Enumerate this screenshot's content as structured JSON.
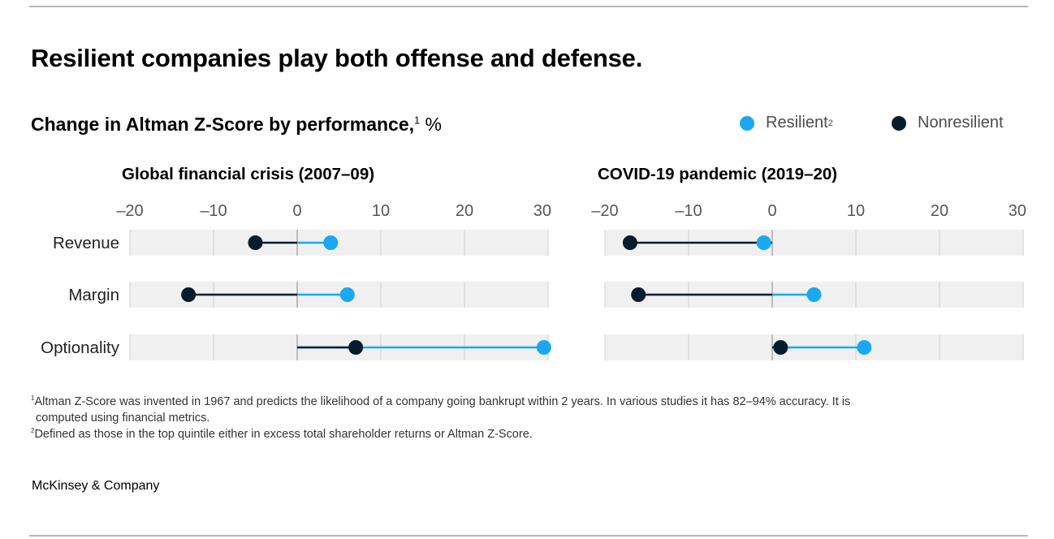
{
  "title": "Resilient companies play both offense and defense.",
  "subtitle": {
    "main": "Change in Altman Z-Score by performance,",
    "sup": "1",
    "unit": " %"
  },
  "legend": [
    {
      "label": "Resilient",
      "sup": "2",
      "color": "#1aa8f0"
    },
    {
      "label": "Nonresilient",
      "sup": "",
      "color": "#051c2c"
    }
  ],
  "colors": {
    "resilient": "#1aa8f0",
    "nonresilient": "#051c2c",
    "band": "#f0f0f0",
    "grid": "#cfcfcf",
    "zero": "#999999"
  },
  "chart_data": [
    {
      "type": "dumbbell",
      "title": "Global financial crisis (2007–09)",
      "categories": [
        "Revenue",
        "Margin",
        "Optionality"
      ],
      "xlim": [
        -20,
        30
      ],
      "ticks": [
        -20,
        -10,
        0,
        10,
        20,
        30
      ],
      "tick_labels": [
        "–20",
        "–10",
        "0",
        "10",
        "20",
        "30"
      ],
      "series": [
        {
          "name": "Resilient",
          "values": [
            4,
            6,
            29.5
          ]
        },
        {
          "name": "Nonresilient",
          "values": [
            -5,
            -13,
            7
          ]
        }
      ]
    },
    {
      "type": "dumbbell",
      "title": "COVID-19 pandemic (2019–20)",
      "categories": [
        "Revenue",
        "Margin",
        "Optionality"
      ],
      "xlim": [
        -20,
        30
      ],
      "ticks": [
        -20,
        -10,
        0,
        10,
        20,
        30
      ],
      "tick_labels": [
        "–20",
        "–10",
        "0",
        "10",
        "20",
        "30"
      ],
      "series": [
        {
          "name": "Resilient",
          "values": [
            -1,
            5,
            11
          ]
        },
        {
          "name": "Nonresilient",
          "values": [
            -17,
            -16,
            1
          ]
        }
      ]
    }
  ],
  "footnotes": [
    {
      "sup": "1",
      "text": "Altman Z-Score was invented in 1967 and predicts the likelihood of a company going bankrupt within 2 years. In various studies it has 82–94% accuracy. It is",
      "cont": "computed using financial metrics."
    },
    {
      "sup": "2",
      "text": "Defined as those in the top quintile either in excess total shareholder returns or Altman Z-Score.",
      "cont": ""
    }
  ],
  "brand": "McKinsey & Company"
}
